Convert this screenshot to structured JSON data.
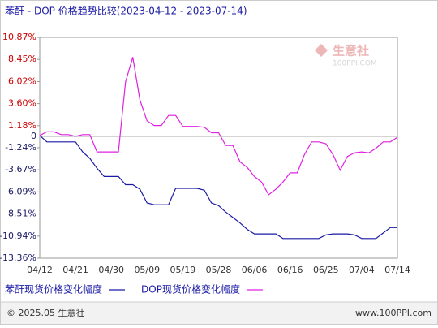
{
  "chart_data": {
    "type": "line",
    "title": "苯酐 - DOP 价格趋势比较(2023-04-12 - 2023-07-14)",
    "watermark": "生意社",
    "watermark_sub": "100PPI.COM",
    "footer_left": "© 2025.05 生意社",
    "footer_right": "www.100PPI.com",
    "categories": [
      "04/12",
      null,
      null,
      null,
      null,
      "04/21",
      null,
      null,
      null,
      null,
      "04/30",
      null,
      null,
      null,
      null,
      "05/09",
      null,
      null,
      null,
      null,
      "05/19",
      null,
      null,
      null,
      null,
      "05/28",
      null,
      null,
      null,
      null,
      "06/06",
      null,
      null,
      null,
      null,
      "06/16",
      null,
      null,
      null,
      null,
      "06/25",
      null,
      null,
      null,
      null,
      "07/04",
      null,
      null,
      null,
      null,
      "07/14"
    ],
    "series": [
      {
        "name": "苯酐现货价格变化幅度",
        "color": "#1a1aa6",
        "values": [
          0.1,
          -0.6,
          -0.6,
          -0.6,
          -0.6,
          -0.6,
          -1.7,
          -2.4,
          -3.5,
          -4.4,
          -4.4,
          -4.4,
          -5.3,
          -5.3,
          -5.8,
          -7.3,
          -7.5,
          -7.5,
          -7.5,
          -5.7,
          -5.7,
          -5.7,
          -5.7,
          -5.9,
          -7.3,
          -7.6,
          -8.3,
          -8.9,
          -9.5,
          -10.2,
          -10.7,
          -10.7,
          -10.7,
          -10.7,
          -11.2,
          -11.2,
          -11.2,
          -11.2,
          -11.2,
          -11.2,
          -10.8,
          -10.7,
          -10.7,
          -10.7,
          -10.8,
          -11.2,
          -11.2,
          -11.2,
          -10.6,
          -10.0,
          -10.0
        ]
      },
      {
        "name": "DOP现货价格变化幅度",
        "color": "#e020e0",
        "values": [
          0.1,
          0.5,
          0.5,
          0.2,
          0.2,
          0.0,
          0.2,
          0.2,
          -1.7,
          -1.7,
          -1.7,
          -1.7,
          6.0,
          8.7,
          4.0,
          1.7,
          1.2,
          1.2,
          2.3,
          2.3,
          1.1,
          1.1,
          1.1,
          1.0,
          0.4,
          0.4,
          -1.0,
          -1.0,
          -2.8,
          -3.4,
          -4.4,
          -5.0,
          -6.4,
          -5.8,
          -5.0,
          -4.0,
          -4.0,
          -2.0,
          -0.6,
          -0.6,
          -0.8,
          -2.0,
          -3.7,
          -2.2,
          -1.8,
          -1.7,
          -1.8,
          -1.3,
          -0.6,
          -0.6,
          -0.1
        ]
      }
    ],
    "ylim": [
      -13.36,
      10.87
    ],
    "yticks": [
      {
        "value": 10.87,
        "label": "10.87%"
      },
      {
        "value": 8.45,
        "label": "8.45%"
      },
      {
        "value": 6.02,
        "label": "6.02%"
      },
      {
        "value": 3.6,
        "label": "3.60%"
      },
      {
        "value": 1.18,
        "label": "1.18%"
      },
      0,
      {
        "value": -1.24,
        "label": "-1.24%"
      },
      {
        "value": -3.67,
        "label": "-3.67%"
      },
      {
        "value": -6.09,
        "label": "-6.09%"
      },
      {
        "value": -8.51,
        "label": "-8.51%"
      },
      {
        "value": -10.94,
        "label": "-10.94%"
      },
      {
        "value": -13.36,
        "label": "-13.36%"
      }
    ],
    "grid": false
  }
}
